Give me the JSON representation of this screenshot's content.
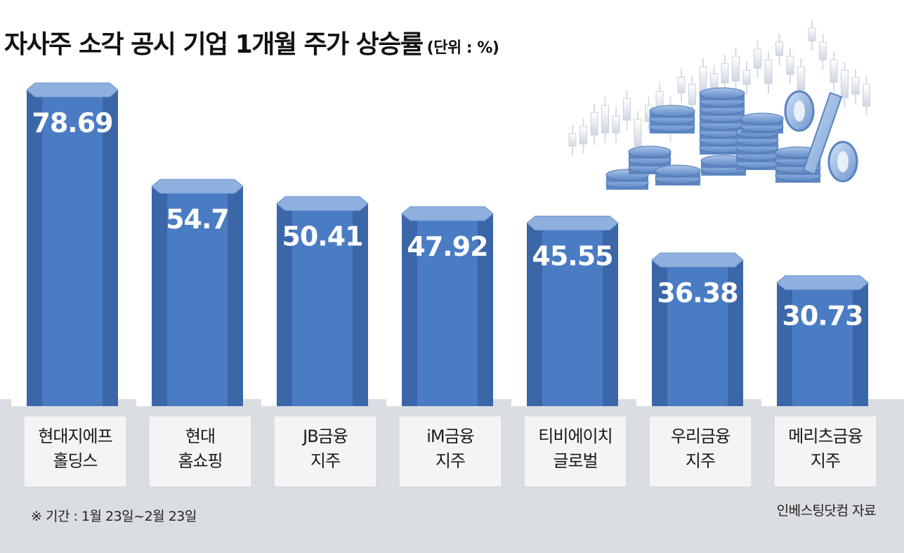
{
  "title": "자사주 소각 공시 기업 1개월 주가 상승률",
  "unit": "(단위 : %)",
  "footnote": "※ 기간 : 1월 23일~2월 23일",
  "source": "인베스팅닷컴 자료",
  "colors": {
    "bar_front": "#4a7cc4",
    "bar_side": "#3b66a8",
    "bar_top": "#8fb0df",
    "floor": "#d9dde3",
    "label_box": "#f3f4f6",
    "value_text": "#ffffff"
  },
  "decoration": "coins-and-percent-sign-with-candlestick-chart",
  "chart_data": {
    "type": "bar",
    "title": "자사주 소각 공시 기업 1개월 주가 상승률",
    "unit": "%",
    "categories": [
      [
        "현대지에프",
        "홀딩스"
      ],
      [
        "현대",
        "홈쇼핑"
      ],
      [
        "JB금융",
        "지주"
      ],
      [
        "iM금융",
        "지주"
      ],
      [
        "티비에이치",
        "글로벌"
      ],
      [
        "우리금융",
        "지주"
      ],
      [
        "메리츠금융",
        "지주"
      ]
    ],
    "values": [
      78.69,
      54.7,
      50.41,
      47.92,
      45.55,
      36.38,
      30.73
    ],
    "value_labels": [
      "78.69",
      "54.7",
      "50.41",
      "47.92",
      "45.55",
      "36.38",
      "30.73"
    ],
    "grid": false,
    "legend": "none"
  }
}
